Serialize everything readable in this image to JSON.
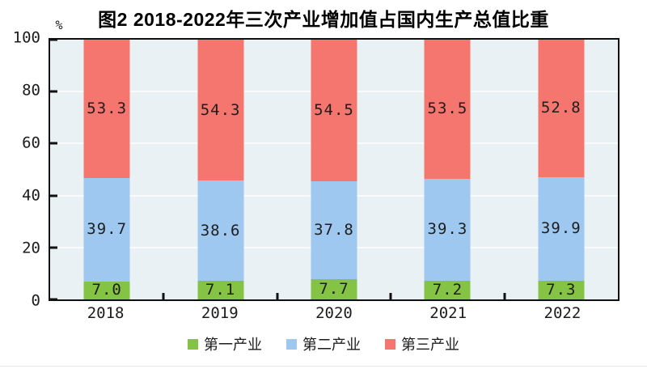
{
  "title": "图2 2018-2022年三次产业增加值占国内生产总值比重",
  "y_axis": {
    "unit": "%",
    "ticks": [
      0,
      20,
      40,
      60,
      80,
      100
    ]
  },
  "x_axis": {
    "categories": [
      "2018",
      "2019",
      "2020",
      "2021",
      "2022"
    ]
  },
  "legend": {
    "items": [
      {
        "label": "第一产业",
        "color": "#84c344"
      },
      {
        "label": "第二产业",
        "color": "#9fc8f0"
      },
      {
        "label": "第三产业",
        "color": "#f5766f"
      }
    ]
  },
  "chart_data": {
    "type": "bar",
    "stacked": true,
    "title": "图2 2018-2022年三次产业增加值占国内生产总值比重",
    "xlabel": "",
    "ylabel": "%",
    "ylim": [
      0,
      100
    ],
    "grid": true,
    "legend_position": "bottom",
    "categories": [
      "2018",
      "2019",
      "2020",
      "2021",
      "2022"
    ],
    "series": [
      {
        "name": "第一产业",
        "color": "#84c344",
        "values": [
          7.0,
          7.1,
          7.7,
          7.2,
          7.3
        ],
        "labels": [
          "7.0",
          "7.1",
          "7.7",
          "7.2",
          "7.3"
        ]
      },
      {
        "name": "第二产业",
        "color": "#9fc8f0",
        "values": [
          39.7,
          38.6,
          37.8,
          39.3,
          39.9
        ],
        "labels": [
          "39.7",
          "38.6",
          "37.8",
          "39.3",
          "39.9"
        ]
      },
      {
        "name": "第三产业",
        "color": "#f5766f",
        "values": [
          53.3,
          54.3,
          54.5,
          53.5,
          52.8
        ],
        "labels": [
          "53.3",
          "54.3",
          "54.5",
          "53.5",
          "52.8"
        ]
      }
    ]
  },
  "colors": {
    "plot_background": "#eaf1f4",
    "gridline": "#f8fbfc",
    "axis": "#111111",
    "label_text": "#1e1e1e"
  }
}
